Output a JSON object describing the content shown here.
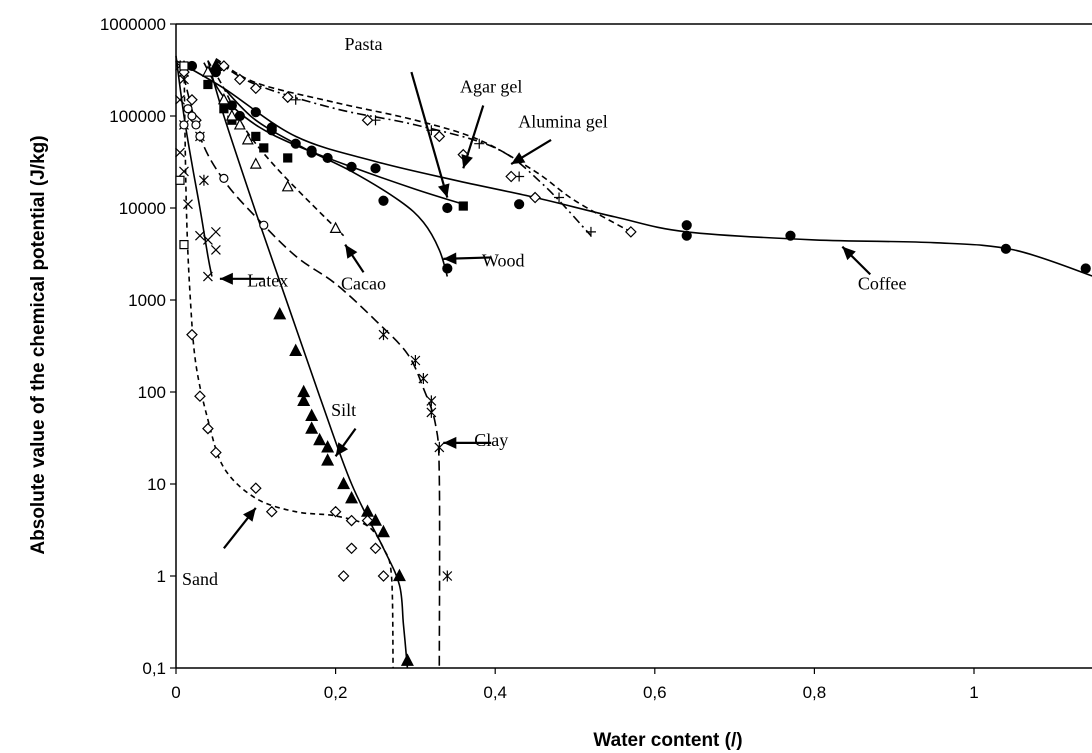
{
  "chart_data": {
    "type": "scatter",
    "title": "",
    "xlabel": "Water content (/)",
    "ylabel": "Absolute value of the chemical potential (J/kg)",
    "xlim": [
      0,
      1.15
    ],
    "ylim": [
      0.1,
      1000000
    ],
    "yscale": "log",
    "grid": false,
    "x_ticks": [
      0,
      0.2,
      0.4,
      0.6,
      0.8,
      1
    ],
    "x_tick_labels": [
      "0",
      "0,2",
      "0,4",
      "0,6",
      "0,8",
      "1"
    ],
    "y_ticks": [
      0.1,
      1,
      10,
      100,
      1000,
      10000,
      100000,
      1000000
    ],
    "y_tick_labels": [
      "0,1",
      "1",
      "10",
      "100",
      "1000",
      "10000",
      "100000",
      "1000000"
    ],
    "series": [
      {
        "name": "Coffee",
        "marker": "circle-filled",
        "dash": "",
        "points": [
          [
            0.02,
            350000
          ],
          [
            0.05,
            300000
          ],
          [
            0.07,
            130000
          ],
          [
            0.1,
            110000
          ],
          [
            0.12,
            75000
          ],
          [
            0.15,
            50000
          ],
          [
            0.17,
            42000
          ],
          [
            0.19,
            35000
          ],
          [
            0.22,
            28000
          ],
          [
            0.25,
            27000
          ],
          [
            0.34,
            10000
          ],
          [
            0.43,
            11000
          ],
          [
            0.64,
            6500
          ],
          [
            0.64,
            5000
          ],
          [
            0.77,
            5000
          ],
          [
            1.04,
            3600
          ],
          [
            1.14,
            2200
          ]
        ],
        "curve": [
          [
            0.0,
            400000
          ],
          [
            0.06,
            200000
          ],
          [
            0.15,
            60000
          ],
          [
            0.25,
            32000
          ],
          [
            0.35,
            20000
          ],
          [
            0.45,
            13000
          ],
          [
            0.55,
            8000
          ],
          [
            0.64,
            5500
          ],
          [
            0.8,
            4500
          ],
          [
            0.95,
            4200
          ],
          [
            1.05,
            3500
          ],
          [
            1.15,
            1800
          ]
        ]
      },
      {
        "name": "Wood",
        "marker": "circle-filled",
        "dash": "",
        "points": [
          [
            0.08,
            100000
          ],
          [
            0.12,
            70000
          ],
          [
            0.17,
            40000
          ],
          [
            0.26,
            12000
          ],
          [
            0.34,
            2200
          ]
        ],
        "curve": [
          [
            0.06,
            200000
          ],
          [
            0.1,
            90000
          ],
          [
            0.16,
            45000
          ],
          [
            0.22,
            25000
          ],
          [
            0.28,
            12000
          ],
          [
            0.31,
            7000
          ],
          [
            0.33,
            3500
          ],
          [
            0.34,
            1800
          ]
        ]
      },
      {
        "name": "Pasta",
        "marker": "square-filled",
        "dash": "",
        "points": [
          [
            0.04,
            220000
          ],
          [
            0.06,
            120000
          ],
          [
            0.07,
            90000
          ],
          [
            0.1,
            60000
          ],
          [
            0.11,
            45000
          ],
          [
            0.14,
            35000
          ],
          [
            0.36,
            10500
          ]
        ],
        "curve": [
          [
            0.035,
            380000
          ],
          [
            0.06,
            160000
          ],
          [
            0.1,
            80000
          ],
          [
            0.15,
            48000
          ],
          [
            0.22,
            28000
          ],
          [
            0.3,
            16000
          ],
          [
            0.36,
            11000
          ]
        ]
      },
      {
        "name": "Agar gel",
        "marker": "plus",
        "dash": "9 4 2 4",
        "points": [
          [
            0.1,
            200000
          ],
          [
            0.15,
            150000
          ],
          [
            0.25,
            90000
          ],
          [
            0.32,
            70000
          ],
          [
            0.38,
            50000
          ],
          [
            0.43,
            22000
          ],
          [
            0.48,
            13000
          ],
          [
            0.52,
            5500
          ]
        ],
        "curve": [
          [
            0.05,
            400000
          ],
          [
            0.1,
            220000
          ],
          [
            0.2,
            120000
          ],
          [
            0.3,
            80000
          ],
          [
            0.4,
            45000
          ],
          [
            0.46,
            18000
          ],
          [
            0.52,
            5000
          ]
        ]
      },
      {
        "name": "Alumina gel",
        "marker": "diamond-open",
        "dash": "6 4",
        "points": [
          [
            0.06,
            350000
          ],
          [
            0.08,
            250000
          ],
          [
            0.1,
            200000
          ],
          [
            0.14,
            160000
          ],
          [
            0.24,
            90000
          ],
          [
            0.33,
            60000
          ],
          [
            0.36,
            38000
          ],
          [
            0.42,
            22000
          ],
          [
            0.45,
            13000
          ],
          [
            0.57,
            5500
          ]
        ],
        "curve": [
          [
            0.05,
            420000
          ],
          [
            0.1,
            230000
          ],
          [
            0.2,
            140000
          ],
          [
            0.3,
            90000
          ],
          [
            0.38,
            55000
          ],
          [
            0.45,
            25000
          ],
          [
            0.5,
            12000
          ],
          [
            0.57,
            5500
          ]
        ]
      },
      {
        "name": "Cacao",
        "marker": "triangle-open",
        "dash": "6 4",
        "points": [
          [
            0.04,
            300000
          ],
          [
            0.06,
            150000
          ],
          [
            0.07,
            100000
          ],
          [
            0.08,
            80000
          ],
          [
            0.09,
            55000
          ],
          [
            0.1,
            30000
          ],
          [
            0.14,
            17000
          ],
          [
            0.2,
            6000
          ]
        ],
        "curve": [
          [
            0.04,
            400000
          ],
          [
            0.06,
            200000
          ],
          [
            0.08,
            90000
          ],
          [
            0.1,
            50000
          ],
          [
            0.13,
            25000
          ],
          [
            0.17,
            11000
          ],
          [
            0.21,
            5000
          ]
        ]
      },
      {
        "name": "Latex",
        "marker": "x",
        "dash": "",
        "points": [
          [
            0.005,
            350000
          ],
          [
            0.01,
            250000
          ],
          [
            0.005,
            150000
          ],
          [
            0.01,
            80000
          ],
          [
            0.005,
            40000
          ],
          [
            0.01,
            25000
          ],
          [
            0.015,
            11000
          ],
          [
            0.03,
            5000
          ],
          [
            0.04,
            4500
          ],
          [
            0.05,
            3500
          ],
          [
            0.05,
            5500
          ],
          [
            0.04,
            1800
          ]
        ],
        "curve": [
          [
            0.0,
            450000
          ],
          [
            0.01,
            100000
          ],
          [
            0.02,
            30000
          ],
          [
            0.03,
            10000
          ],
          [
            0.04,
            3000
          ],
          [
            0.045,
            1800
          ]
        ]
      },
      {
        "name": "Clay",
        "marker": "star",
        "dash": "10 5",
        "points": [
          [
            0.01,
            300000
          ],
          [
            0.03,
            60000
          ],
          [
            0.035,
            20000
          ],
          [
            0.26,
            420
          ],
          [
            0.3,
            220
          ],
          [
            0.31,
            140
          ],
          [
            0.32,
            80
          ],
          [
            0.32,
            60
          ],
          [
            0.33,
            25
          ],
          [
            0.34,
            1
          ]
        ],
        "curve": [
          [
            0.005,
            400000
          ],
          [
            0.03,
            60000
          ],
          [
            0.06,
            20000
          ],
          [
            0.1,
            8000
          ],
          [
            0.15,
            3000
          ],
          [
            0.2,
            1500
          ],
          [
            0.25,
            600
          ],
          [
            0.29,
            260
          ],
          [
            0.31,
            110
          ],
          [
            0.325,
            45
          ],
          [
            0.33,
            12
          ],
          [
            0.33,
            0.1
          ]
        ]
      },
      {
        "name": "Silt",
        "marker": "triangle-filled",
        "dash": "",
        "points": [
          [
            0.05,
            350000
          ],
          [
            0.13,
            700
          ],
          [
            0.15,
            280
          ],
          [
            0.16,
            100
          ],
          [
            0.16,
            80
          ],
          [
            0.17,
            55
          ],
          [
            0.17,
            40
          ],
          [
            0.18,
            30
          ],
          [
            0.19,
            25
          ],
          [
            0.19,
            18
          ],
          [
            0.21,
            10
          ],
          [
            0.22,
            7
          ],
          [
            0.24,
            5
          ],
          [
            0.25,
            4
          ],
          [
            0.26,
            3
          ],
          [
            0.28,
            1
          ],
          [
            0.29,
            0.12
          ]
        ],
        "curve": [
          [
            0.04,
            400000
          ],
          [
            0.06,
            100000
          ],
          [
            0.1,
            9000
          ],
          [
            0.14,
            900
          ],
          [
            0.18,
            90
          ],
          [
            0.22,
            10
          ],
          [
            0.26,
            2
          ],
          [
            0.28,
            0.8
          ],
          [
            0.285,
            0.3
          ],
          [
            0.29,
            0.1
          ]
        ]
      },
      {
        "name": "Sand",
        "marker": "diamond-open",
        "dash": "5 4",
        "points": [
          [
            0.01,
            300000
          ],
          [
            0.02,
            150000
          ],
          [
            0.025,
            90000
          ],
          [
            0.02,
            420
          ],
          [
            0.03,
            90
          ],
          [
            0.04,
            40
          ],
          [
            0.05,
            22
          ],
          [
            0.1,
            9
          ],
          [
            0.12,
            5
          ],
          [
            0.2,
            5
          ],
          [
            0.22,
            4
          ],
          [
            0.24,
            4
          ],
          [
            0.22,
            2
          ],
          [
            0.25,
            2
          ],
          [
            0.21,
            1
          ],
          [
            0.26,
            1
          ]
        ],
        "curve": [
          [
            0.01,
            400000
          ],
          [
            0.013,
            10000
          ],
          [
            0.018,
            1000
          ],
          [
            0.025,
            200
          ],
          [
            0.04,
            50
          ],
          [
            0.06,
            15
          ],
          [
            0.1,
            7
          ],
          [
            0.15,
            5
          ],
          [
            0.2,
            4.5
          ],
          [
            0.24,
            3.5
          ],
          [
            0.26,
            2
          ],
          [
            0.27,
            1
          ],
          [
            0.272,
            0.1
          ]
        ]
      },
      {
        "name": "",
        "marker": "circle-open",
        "dash": "",
        "points": [
          [
            0.01,
            80000
          ],
          [
            0.015,
            120000
          ],
          [
            0.02,
            100000
          ],
          [
            0.025,
            80000
          ],
          [
            0.03,
            60000
          ],
          [
            0.06,
            21000
          ],
          [
            0.11,
            6500
          ]
        ],
        "curve": []
      },
      {
        "name": "",
        "marker": "square-open",
        "dash": "",
        "points": [
          [
            0.005,
            20000
          ],
          [
            0.01,
            4000
          ],
          [
            0.01,
            350000
          ]
        ],
        "curve": []
      }
    ],
    "annotations": [
      {
        "text": "Pasta",
        "x": 0.235,
        "y": 520000,
        "ax": 0.295,
        "ay": 300000,
        "tx": 0.34,
        "ty": 13000
      },
      {
        "text": "Agar gel",
        "x": 0.395,
        "y": 180000,
        "ax": 0.385,
        "ay": 130000,
        "tx": 0.36,
        "ty": 27000
      },
      {
        "text": "Alumina gel",
        "x": 0.485,
        "y": 75000,
        "ax": 0.47,
        "ay": 55000,
        "tx": 0.42,
        "ty": 30000
      },
      {
        "text": "Wood",
        "x": 0.41,
        "y": 2300,
        "ax": 0.395,
        "ay": 2900,
        "tx": 0.335,
        "ty": 2800
      },
      {
        "text": "Cacao",
        "x": 0.235,
        "y": 1300,
        "ax": 0.235,
        "ay": 2000,
        "tx": 0.212,
        "ty": 4000
      },
      {
        "text": "Coffee",
        "x": 0.885,
        "y": 1300,
        "ax": 0.87,
        "ay": 1900,
        "tx": 0.835,
        "ty": 3800
      },
      {
        "text": "Latex",
        "x": 0.115,
        "y": 1400,
        "ax": 0.11,
        "ay": 1700,
        "tx": 0.055,
        "ty": 1700
      },
      {
        "text": "Silt",
        "x": 0.21,
        "y": 55,
        "ax": 0.225,
        "ay": 40,
        "tx": 0.2,
        "ty": 20
      },
      {
        "text": "Clay",
        "x": 0.395,
        "y": 26,
        "ax": 0.395,
        "ay": 28,
        "tx": 0.335,
        "ty": 28
      },
      {
        "text": "Sand",
        "x": 0.03,
        "y": 0.8,
        "ax": 0.06,
        "ay": 2,
        "tx": 0.1,
        "ty": 5.5
      }
    ]
  }
}
